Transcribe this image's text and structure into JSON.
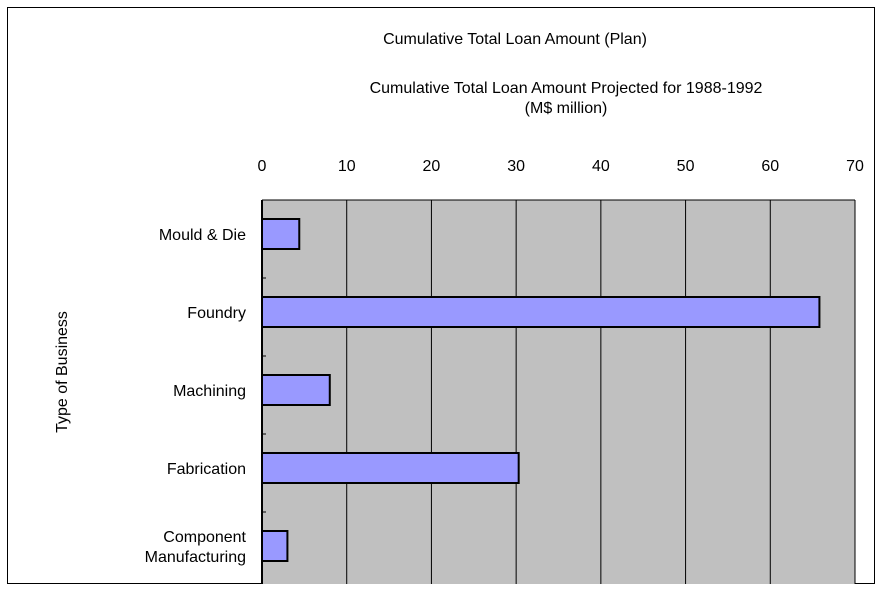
{
  "chart_data": {
    "type": "bar",
    "orientation": "horizontal",
    "title": "Cumulative Total Loan Amount (Plan)",
    "xlabel_lines": [
      "Cumulative Total Loan Amount Projected for 1988-1992",
      "(M$ million)"
    ],
    "ylabel": "Type of Business",
    "categories": [
      [
        "Mould & Die"
      ],
      [
        "Foundry"
      ],
      [
        "Machining"
      ],
      [
        "Fabrication"
      ],
      [
        "Component",
        "Manufacturing"
      ]
    ],
    "values": [
      4.4,
      65.8,
      8.0,
      30.3,
      3.0
    ],
    "xlim": [
      0,
      70
    ],
    "xticks": [
      0,
      10,
      20,
      30,
      40,
      50,
      60,
      70
    ],
    "x_axis_position": "top",
    "grid": "vertical",
    "legend": "none",
    "colors": {
      "bar_fill": "#9999ff",
      "bar_stroke": "#000000",
      "plot_background": "#c0c0c0",
      "gridline": "#000000",
      "frame": "#000000"
    }
  }
}
